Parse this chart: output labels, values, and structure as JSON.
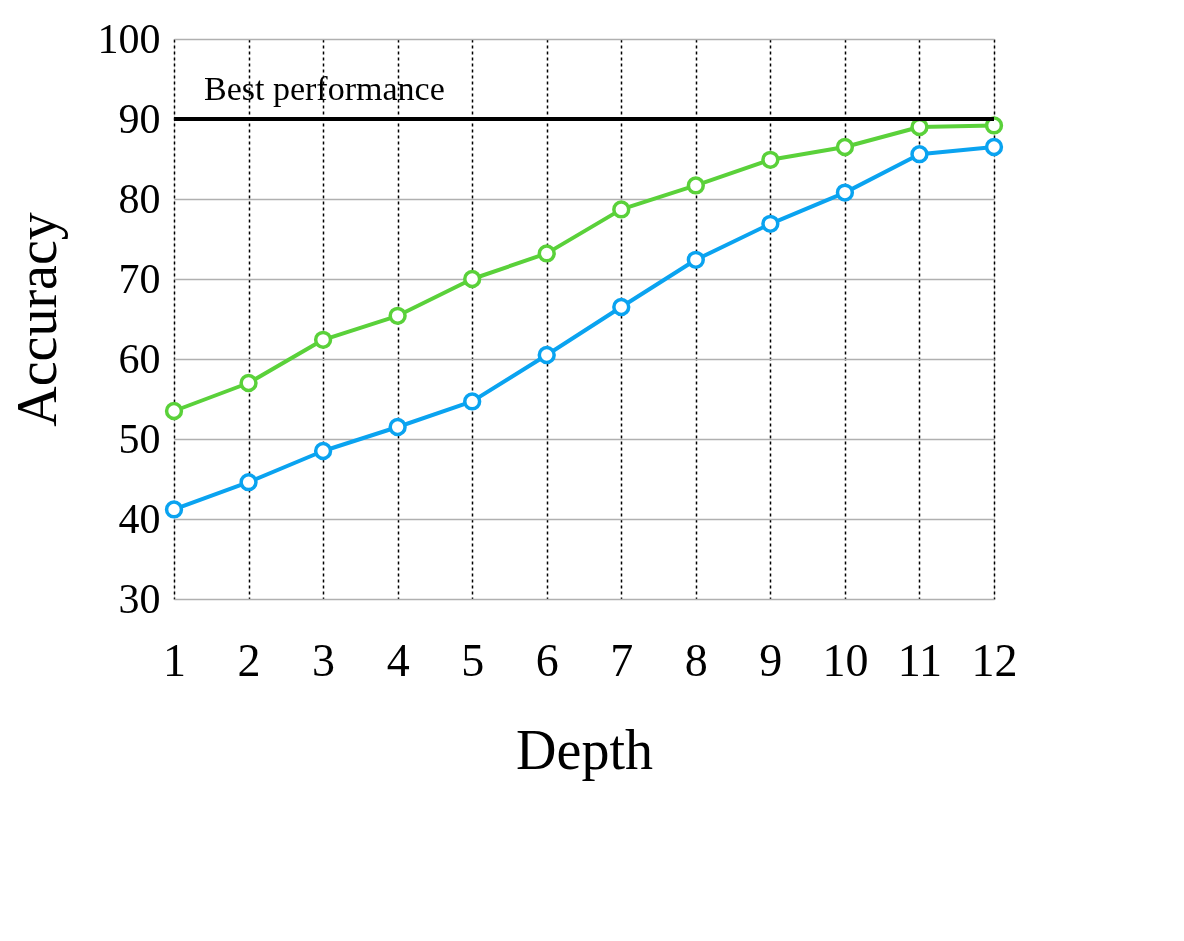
{
  "chart_data": {
    "type": "line",
    "xlabel": "Depth",
    "ylabel": "Accuracy",
    "x": [
      1,
      2,
      3,
      4,
      5,
      6,
      7,
      8,
      9,
      10,
      11,
      12
    ],
    "series": [
      {
        "color": "#5ad13a",
        "values": [
          53.5,
          57.0,
          62.4,
          65.4,
          70.0,
          73.2,
          78.7,
          81.7,
          84.9,
          86.5,
          89.0,
          89.2
        ]
      },
      {
        "color": "#0aa3f0",
        "values": [
          41.2,
          44.6,
          48.5,
          51.5,
          54.7,
          60.5,
          66.5,
          72.4,
          76.9,
          80.8,
          85.6,
          86.5
        ]
      }
    ],
    "xlim": [
      1,
      12
    ],
    "xticks": [
      1,
      2,
      3,
      4,
      5,
      6,
      7,
      8,
      9,
      10,
      11,
      12
    ],
    "ylim": [
      30,
      100
    ],
    "yticks": [
      30,
      40,
      50,
      60,
      70,
      80,
      90,
      100
    ],
    "ref_lines": [
      {
        "axis": "y",
        "value": 90,
        "label": "Best performance",
        "color": "#000000"
      }
    ],
    "grid": true,
    "marker": "circle",
    "line_style": "solid"
  }
}
